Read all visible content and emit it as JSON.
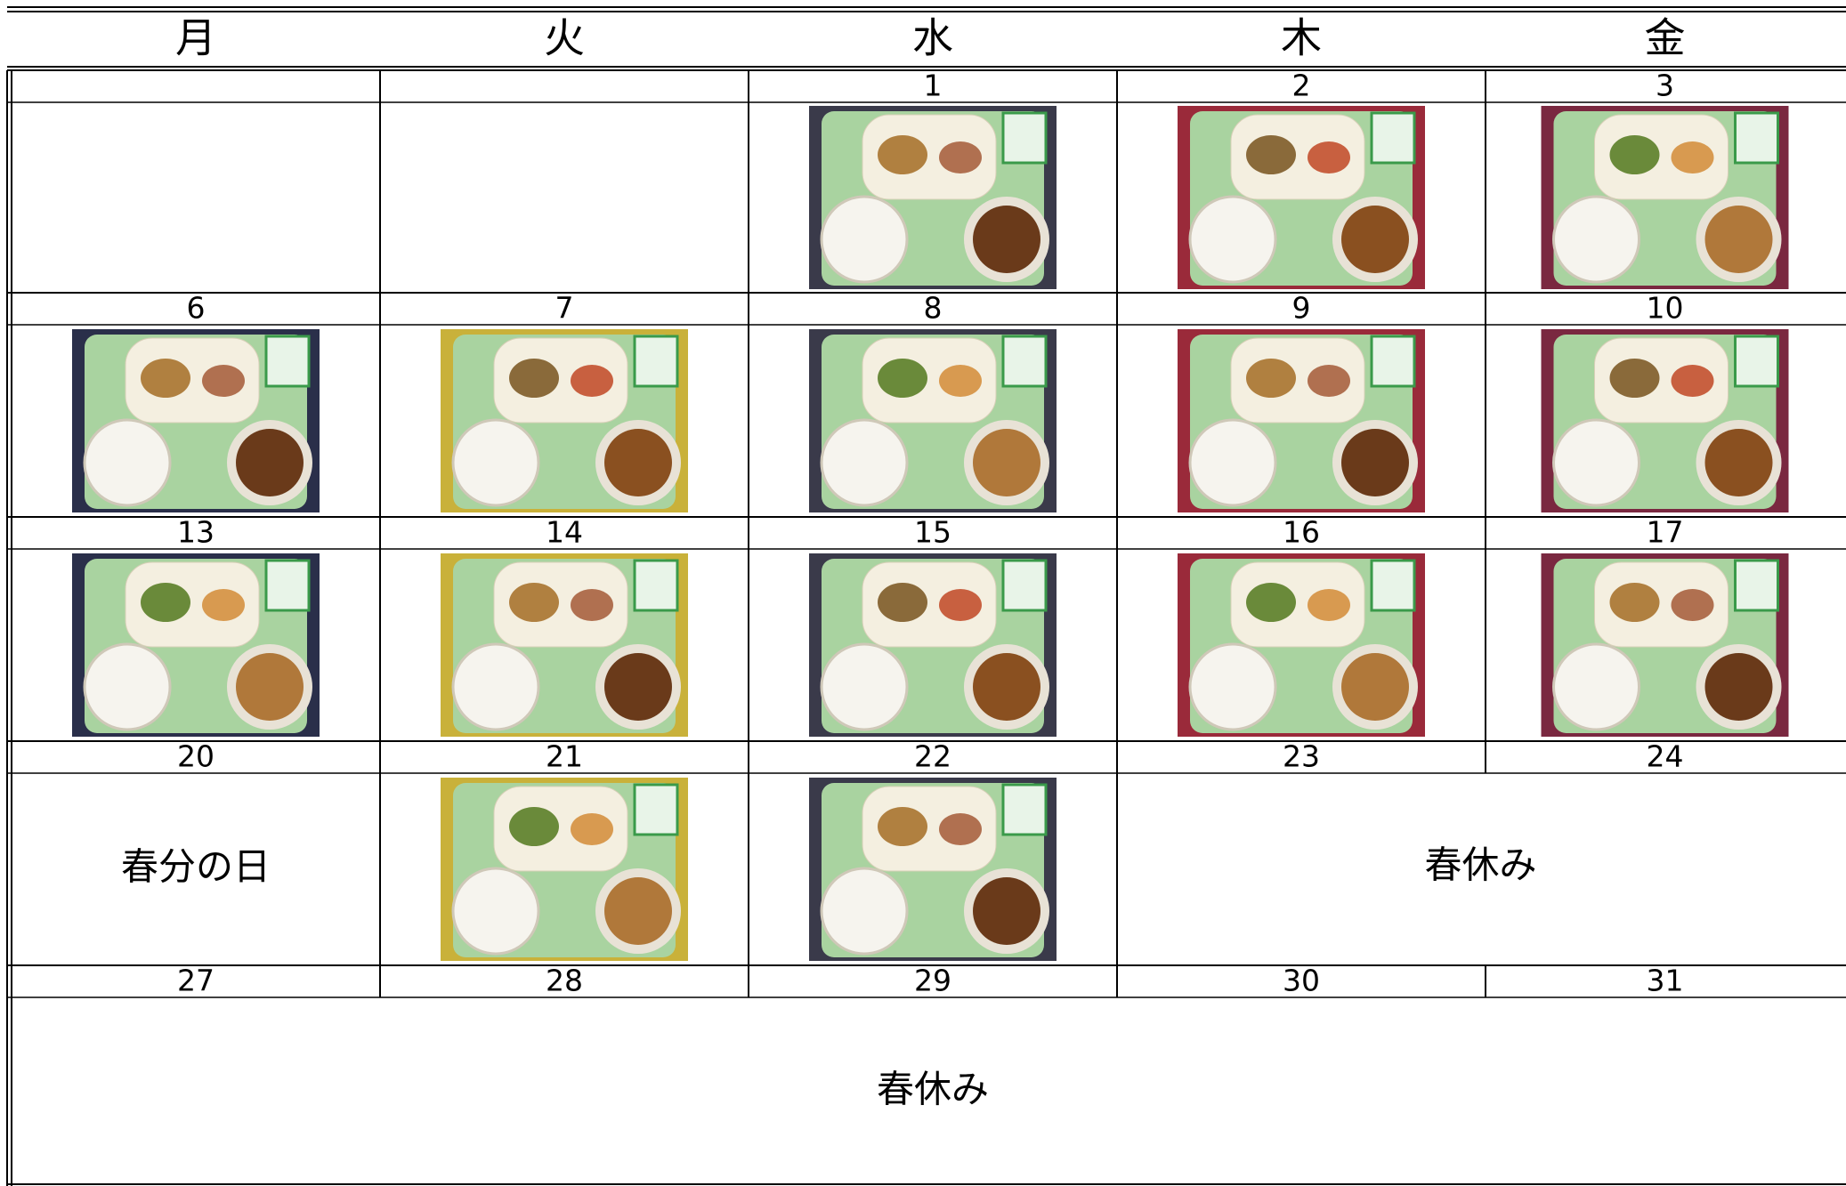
{
  "header": [
    "月",
    "火",
    "水",
    "木",
    "金"
  ],
  "weeks": [
    {
      "dates": [
        null,
        null,
        1,
        2,
        3
      ]
    },
    {
      "dates": [
        6,
        7,
        8,
        9,
        10
      ]
    },
    {
      "dates": [
        13,
        14,
        15,
        16,
        17
      ]
    },
    {
      "dates": [
        20,
        21,
        22,
        23,
        24
      ],
      "notes": [
        "春分の日",
        "春休み"
      ]
    },
    {
      "dates": [
        27,
        28,
        29,
        30,
        31
      ],
      "notes": [
        "春休み"
      ]
    }
  ]
}
